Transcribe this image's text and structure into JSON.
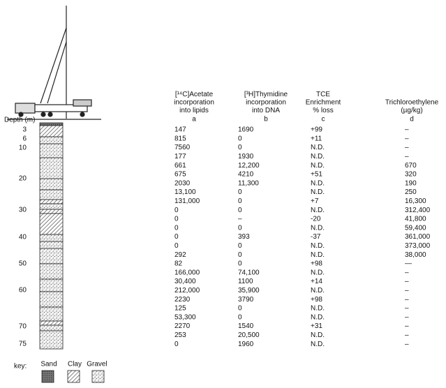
{
  "depth": {
    "label": "Depth (m)",
    "ticks": [
      "3",
      "6",
      "10",
      "20",
      "30",
      "40",
      "50",
      "60",
      "70",
      "75"
    ]
  },
  "table": {
    "headers": [
      {
        "lines": [
          "[¹⁴C]Acetate",
          "incorporation",
          "into lipids"
        ],
        "letter": "a"
      },
      {
        "lines": [
          "[³H]Thymidine",
          "incorporation",
          "into DNA"
        ],
        "letter": "b"
      },
      {
        "lines": [
          "TCE",
          "Enrichment",
          "% loss"
        ],
        "letter": "c"
      },
      {
        "lines": [
          "Trichloroethylene",
          "(µg/kg)"
        ],
        "letter": "d"
      }
    ],
    "rows": [
      [
        "147",
        "1690",
        "+99",
        "–"
      ],
      [
        "815",
        "0",
        "+11",
        "–"
      ],
      [
        "7560",
        "0",
        "N.D.",
        "–"
      ],
      [
        "177",
        "1930",
        "N.D.",
        "–"
      ],
      [
        "661",
        "12,200",
        "N.D.",
        "670"
      ],
      [
        "675",
        "4210",
        "+51",
        "320"
      ],
      [
        "2030",
        "11,300",
        "N.D.",
        "190"
      ],
      [
        "13,100",
        "0",
        "N.D.",
        "250"
      ],
      [
        "131,000",
        "0",
        "+7",
        "16,300"
      ],
      [
        "0",
        "0",
        "N.D.",
        "312,400"
      ],
      [
        "0",
        "–",
        "-20",
        "41,800"
      ],
      [
        "0",
        "0",
        "N.D.",
        "59,400"
      ],
      [
        "0",
        "393",
        "-37",
        "361,000"
      ],
      [
        "0",
        "0",
        "N.D.",
        "373,000"
      ],
      [
        "292",
        "0",
        "N.D.",
        "38,000"
      ],
      [
        "82",
        "0",
        "+98",
        "—"
      ],
      [
        "166,000",
        "74,100",
        "N.D.",
        "–"
      ],
      [
        "30,400",
        "1100",
        "+14",
        "–"
      ],
      [
        "212,000",
        "35,900",
        "N.D.",
        "–"
      ],
      [
        "2230",
        "3790",
        "+98",
        "–"
      ],
      [
        "125",
        "0",
        "N.D.",
        "–"
      ],
      [
        "53,300",
        "0",
        "N.D.",
        "–"
      ],
      [
        "2270",
        "1540",
        "+31",
        "–"
      ],
      [
        "253",
        "20,500",
        "N.D.",
        "–"
      ],
      [
        "0",
        "1960",
        "N.D.",
        "–"
      ]
    ]
  },
  "key": {
    "label": "key:",
    "items": [
      "Sand",
      "Clay",
      "Gravel"
    ]
  }
}
